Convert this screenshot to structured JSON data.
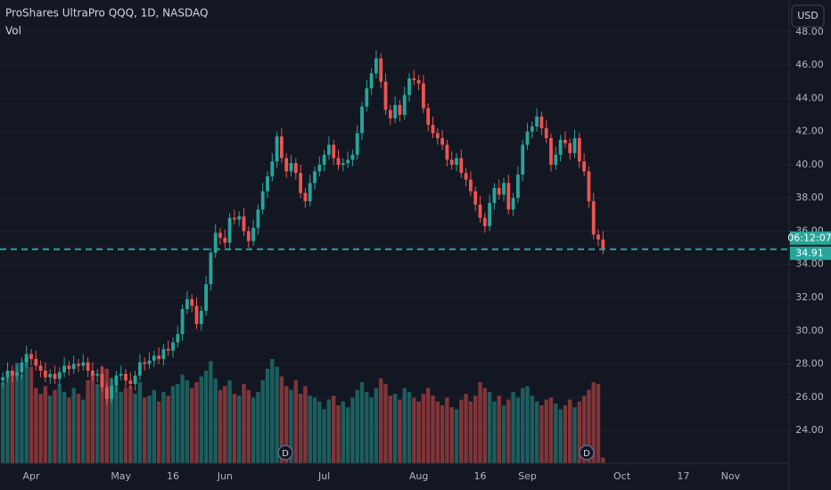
{
  "chart_data": {
    "type": "candlestick",
    "title": "ProShares UltraPro QQQ, 1D, NASDAQ",
    "volume_label": "Vol",
    "currency": "USD",
    "countdown": "06:12:07",
    "last_price": 34.91,
    "dividends": [
      "D",
      "D"
    ],
    "up_color": "#26a69a",
    "down_color": "#ef5350",
    "grid": true,
    "ylim": [
      22.02,
      49.92
    ],
    "yticks": [
      {
        "value": 24,
        "label": "24.00"
      },
      {
        "value": 26,
        "label": "26.00"
      },
      {
        "value": 28,
        "label": "28.00"
      },
      {
        "value": 30,
        "label": "30.00"
      },
      {
        "value": 32,
        "label": "32.00"
      },
      {
        "value": 34,
        "label": "34.00"
      },
      {
        "value": 36,
        "label": "36.00"
      },
      {
        "value": 38,
        "label": "38.00"
      },
      {
        "value": 40,
        "label": "40.00"
      },
      {
        "value": 42,
        "label": "42.00"
      },
      {
        "value": 44,
        "label": "44.00"
      },
      {
        "value": 46,
        "label": "46.00"
      },
      {
        "value": 48,
        "label": "48.00"
      }
    ],
    "volume_lim": [
      0,
      300
    ],
    "categories": [
      null,
      null,
      null,
      null,
      null,
      null,
      "Apr",
      null,
      null,
      null,
      null,
      null,
      null,
      null,
      null,
      null,
      null,
      null,
      null,
      null,
      null,
      null,
      null,
      null,
      null,
      "May",
      null,
      null,
      null,
      null,
      null,
      null,
      null,
      null,
      null,
      null,
      "16",
      null,
      null,
      null,
      null,
      null,
      null,
      null,
      null,
      null,
      null,
      "Jun",
      null,
      null,
      null,
      null,
      null,
      null,
      null,
      null,
      null,
      null,
      null,
      null,
      null,
      null,
      null,
      null,
      null,
      null,
      null,
      null,
      "Jul",
      null,
      null,
      null,
      null,
      null,
      null,
      null,
      null,
      null,
      null,
      null,
      null,
      null,
      null,
      null,
      null,
      null,
      null,
      null,
      "Aug",
      null,
      null,
      null,
      null,
      null,
      null,
      null,
      null,
      null,
      null,
      null,
      null,
      "16",
      null,
      null,
      null,
      null,
      null,
      null,
      null,
      null,
      null,
      "Sep",
      null,
      null,
      null,
      null,
      null,
      null,
      null,
      null,
      null,
      null,
      null,
      null,
      null,
      null,
      null,
      null,
      null,
      null,
      null,
      "Oct",
      null,
      null,
      null,
      null,
      null,
      null,
      null,
      null,
      null,
      null,
      null,
      null,
      "17",
      null,
      null,
      null,
      null,
      null,
      null,
      null,
      null,
      null,
      "Nov",
      null,
      null,
      null,
      null,
      null,
      null,
      null,
      null,
      null,
      null,
      null
    ],
    "open": [
      27.0,
      27.2,
      27.6,
      27.3,
      27.5,
      28.1,
      28.6,
      28.3,
      27.9,
      27.6,
      27.2,
      27.4,
      27.1,
      27.5,
      27.9,
      27.7,
      28.0,
      27.9,
      28.1,
      27.6,
      27.3,
      27.4,
      26.6,
      25.9,
      26.7,
      27.3,
      27.4,
      27.0,
      26.8,
      27.3,
      28.1,
      28.0,
      28.2,
      28.5,
      28.3,
      28.9,
      28.8,
      29.3,
      29.8,
      31.3,
      31.9,
      31.5,
      30.4,
      31.2,
      32.8,
      34.7,
      35.9,
      35.6,
      35.3,
      36.8,
      36.7,
      36.9,
      36.0,
      35.4,
      36.2,
      37.3,
      38.4,
      39.3,
      40.2,
      41.7,
      40.4,
      39.6,
      40.1,
      39.5,
      38.3,
      37.8,
      38.9,
      39.6,
      40.0,
      40.6,
      41.2,
      40.4,
      40.0,
      40.1,
      40.3,
      40.6,
      41.9,
      43.5,
      44.6,
      45.5,
      46.4,
      45.0,
      43.3,
      42.8,
      43.6,
      43.0,
      44.2,
      45.2,
      45.1,
      44.9,
      43.4,
      42.4,
      41.9,
      41.6,
      41.2,
      40.3,
      40.0,
      40.4,
      39.5,
      39.1,
      38.4,
      37.6,
      36.8,
      36.3,
      37.7,
      38.6,
      38.2,
      38.9,
      37.3,
      38.0,
      39.4,
      41.2,
      42.0,
      42.3,
      42.9,
      42.2,
      41.6,
      40.0,
      40.6,
      41.5,
      41.3,
      40.7,
      41.6,
      40.2,
      39.6,
      37.8,
      35.8,
      35.5,
      null,
      null,
      null,
      null,
      null,
      null,
      null,
      null,
      null,
      null,
      null,
      null,
      null,
      null,
      null,
      null,
      null,
      null,
      null,
      null,
      null,
      null,
      null,
      null,
      null,
      null,
      null,
      null,
      null,
      null,
      null,
      null,
      null,
      null,
      null,
      null,
      null,
      null
    ],
    "high": [
      27.5,
      28.1,
      27.9,
      28.0,
      28.4,
      29.1,
      28.9,
      28.8,
      28.2,
      28.1,
      27.7,
      27.9,
      27.8,
      28.4,
      28.2,
      28.5,
      28.3,
      28.6,
      28.4,
      28.1,
      27.7,
      27.9,
      26.9,
      27.2,
      27.6,
      27.9,
      27.7,
      27.5,
      27.6,
      28.6,
      28.4,
      28.7,
      28.8,
      29.0,
      29.2,
      29.4,
      29.6,
      30.3,
      31.6,
      32.4,
      32.2,
      32.0,
      31.5,
      33.3,
      35.0,
      36.4,
      36.2,
      36.1,
      37.1,
      37.3,
      37.2,
      37.4,
      36.3,
      36.7,
      37.6,
      38.9,
      39.6,
      40.7,
      42.0,
      42.2,
      40.7,
      40.6,
      40.4,
      40.0,
      38.6,
      39.4,
      39.9,
      40.5,
      40.9,
      41.7,
      41.5,
      40.9,
      40.4,
      40.8,
      40.9,
      42.4,
      43.8,
      45.1,
      45.8,
      46.9,
      46.7,
      45.5,
      43.6,
      44.1,
      43.9,
      44.7,
      45.5,
      45.7,
      45.4,
      45.4,
      43.7,
      42.9,
      42.2,
      42.1,
      41.5,
      40.8,
      40.7,
      40.9,
      39.8,
      39.6,
      38.7,
      38.1,
      37.1,
      38.2,
      38.9,
      39.1,
      39.2,
      39.4,
      38.3,
      39.9,
      41.5,
      42.5,
      42.6,
      43.4,
      43.2,
      42.7,
      41.9,
      41.1,
      41.8,
      42.0,
      41.6,
      42.1,
      41.9,
      40.7,
      39.9,
      38.3,
      36.1,
      36.0,
      null,
      null,
      null,
      null,
      null,
      null,
      null,
      null,
      null,
      null,
      null,
      null,
      null,
      null,
      null,
      null,
      null,
      null,
      null,
      null,
      null,
      null,
      null,
      null,
      null,
      null,
      null,
      null,
      null,
      null,
      null,
      null,
      null,
      null,
      null,
      null,
      null,
      null
    ],
    "low": [
      26.6,
      26.9,
      26.9,
      27.0,
      27.1,
      27.8,
      27.9,
      27.6,
      27.2,
      26.9,
      26.8,
      26.8,
      26.7,
      27.2,
      27.3,
      27.4,
      27.5,
      27.6,
      27.2,
      27.0,
      26.9,
      26.3,
      25.5,
      25.6,
      26.3,
      27.0,
      26.6,
      26.5,
      26.4,
      27.0,
      27.6,
      27.7,
      27.8,
      28.0,
      27.9,
      28.5,
      28.4,
      29.0,
      29.4,
      31.0,
      31.1,
      30.1,
      30.0,
      30.9,
      32.4,
      34.4,
      35.2,
      35.0,
      34.9,
      36.4,
      36.3,
      35.7,
      35.0,
      35.1,
      35.8,
      37.0,
      38.0,
      39.0,
      39.8,
      40.1,
      39.2,
      39.3,
      39.1,
      38.0,
      37.4,
      37.5,
      38.5,
      39.3,
      39.6,
      40.3,
      40.0,
      39.7,
      39.6,
      39.8,
      39.9,
      40.3,
      41.5,
      43.2,
      44.2,
      45.2,
      44.6,
      43.0,
      42.4,
      42.5,
      42.6,
      42.7,
      43.8,
      44.8,
      44.5,
      43.1,
      42.0,
      41.6,
      41.2,
      40.9,
      39.9,
      39.7,
      39.6,
      39.2,
      38.7,
      38.1,
      37.2,
      36.5,
      35.9,
      36.0,
      37.3,
      37.9,
      37.8,
      37.0,
      36.9,
      37.7,
      39.0,
      40.9,
      41.6,
      42.0,
      41.8,
      41.3,
      39.6,
      39.7,
      40.2,
      41.0,
      40.3,
      40.4,
      39.8,
      39.3,
      37.4,
      35.5,
      35.1,
      34.61,
      null,
      null,
      null,
      null,
      null,
      null,
      null,
      null,
      null,
      null,
      null,
      null,
      null,
      null,
      null,
      null,
      null,
      null,
      null,
      null,
      null,
      null,
      null,
      null,
      null,
      null,
      null,
      null,
      null,
      null,
      null,
      null,
      null,
      null,
      null,
      null,
      null,
      null
    ],
    "close": [
      27.2,
      27.6,
      27.3,
      27.5,
      28.1,
      28.6,
      28.3,
      27.9,
      27.6,
      27.2,
      27.4,
      27.1,
      27.5,
      27.9,
      27.7,
      28.0,
      27.9,
      28.1,
      27.6,
      27.3,
      27.4,
      26.6,
      25.9,
      26.7,
      27.3,
      27.4,
      27.0,
      26.8,
      27.3,
      28.1,
      28.0,
      28.2,
      28.5,
      28.3,
      28.9,
      28.8,
      29.3,
      29.8,
      31.3,
      31.9,
      31.5,
      30.4,
      31.2,
      32.8,
      34.7,
      35.9,
      35.6,
      35.3,
      36.8,
      36.7,
      36.9,
      36.0,
      35.4,
      36.2,
      37.3,
      38.4,
      39.3,
      40.2,
      41.7,
      40.4,
      39.6,
      40.1,
      39.5,
      38.3,
      37.8,
      38.9,
      39.6,
      40.0,
      40.6,
      41.2,
      40.4,
      40.0,
      40.1,
      40.3,
      40.6,
      41.9,
      43.5,
      44.6,
      45.5,
      46.4,
      45.0,
      43.3,
      42.8,
      43.6,
      43.0,
      44.2,
      45.2,
      45.1,
      44.9,
      43.4,
      42.4,
      41.9,
      41.6,
      41.2,
      40.3,
      40.0,
      40.4,
      39.5,
      39.1,
      38.4,
      37.6,
      36.8,
      36.3,
      37.7,
      38.6,
      38.2,
      38.9,
      37.3,
      38.0,
      39.4,
      41.2,
      42.0,
      42.3,
      42.9,
      42.2,
      41.6,
      40.0,
      40.6,
      41.5,
      41.3,
      40.7,
      41.6,
      40.2,
      39.6,
      37.8,
      35.8,
      35.5,
      34.91,
      null,
      null,
      null,
      null,
      null,
      null,
      null,
      null,
      null,
      null,
      null,
      null,
      null,
      null,
      null,
      null,
      null,
      null,
      null,
      null,
      null,
      null,
      null,
      null,
      null,
      null,
      null,
      null,
      null,
      null,
      null,
      null,
      null,
      null,
      null,
      null,
      null,
      null
    ],
    "volume": [
      210,
      225,
      240,
      260,
      230,
      275,
      250,
      195,
      180,
      200,
      175,
      190,
      205,
      185,
      170,
      195,
      180,
      165,
      215,
      230,
      205,
      250,
      245,
      220,
      200,
      185,
      195,
      200,
      180,
      210,
      170,
      175,
      190,
      160,
      185,
      175,
      200,
      205,
      230,
      215,
      195,
      210,
      225,
      240,
      265,
      220,
      190,
      200,
      215,
      180,
      175,
      205,
      190,
      170,
      185,
      215,
      245,
      270,
      250,
      225,
      200,
      190,
      215,
      180,
      200,
      175,
      170,
      160,
      140,
      165,
      175,
      150,
      160,
      145,
      170,
      190,
      210,
      185,
      170,
      195,
      220,
      205,
      175,
      180,
      165,
      195,
      185,
      170,
      160,
      180,
      195,
      175,
      160,
      150,
      170,
      145,
      140,
      165,
      180,
      160,
      175,
      210,
      195,
      185,
      160,
      175,
      150,
      165,
      185,
      170,
      195,
      200,
      175,
      160,
      150,
      165,
      170,
      155,
      140,
      150,
      165,
      145,
      160,
      175,
      190,
      210,
      205,
      15,
      null,
      null,
      null,
      null,
      null,
      null,
      null,
      null,
      null,
      null,
      null,
      null,
      null,
      null,
      null,
      null,
      null,
      null,
      null,
      null,
      null,
      null,
      null,
      null,
      null,
      null,
      null,
      null,
      null,
      null,
      null,
      null,
      null,
      null,
      null,
      null,
      null,
      null
    ]
  }
}
